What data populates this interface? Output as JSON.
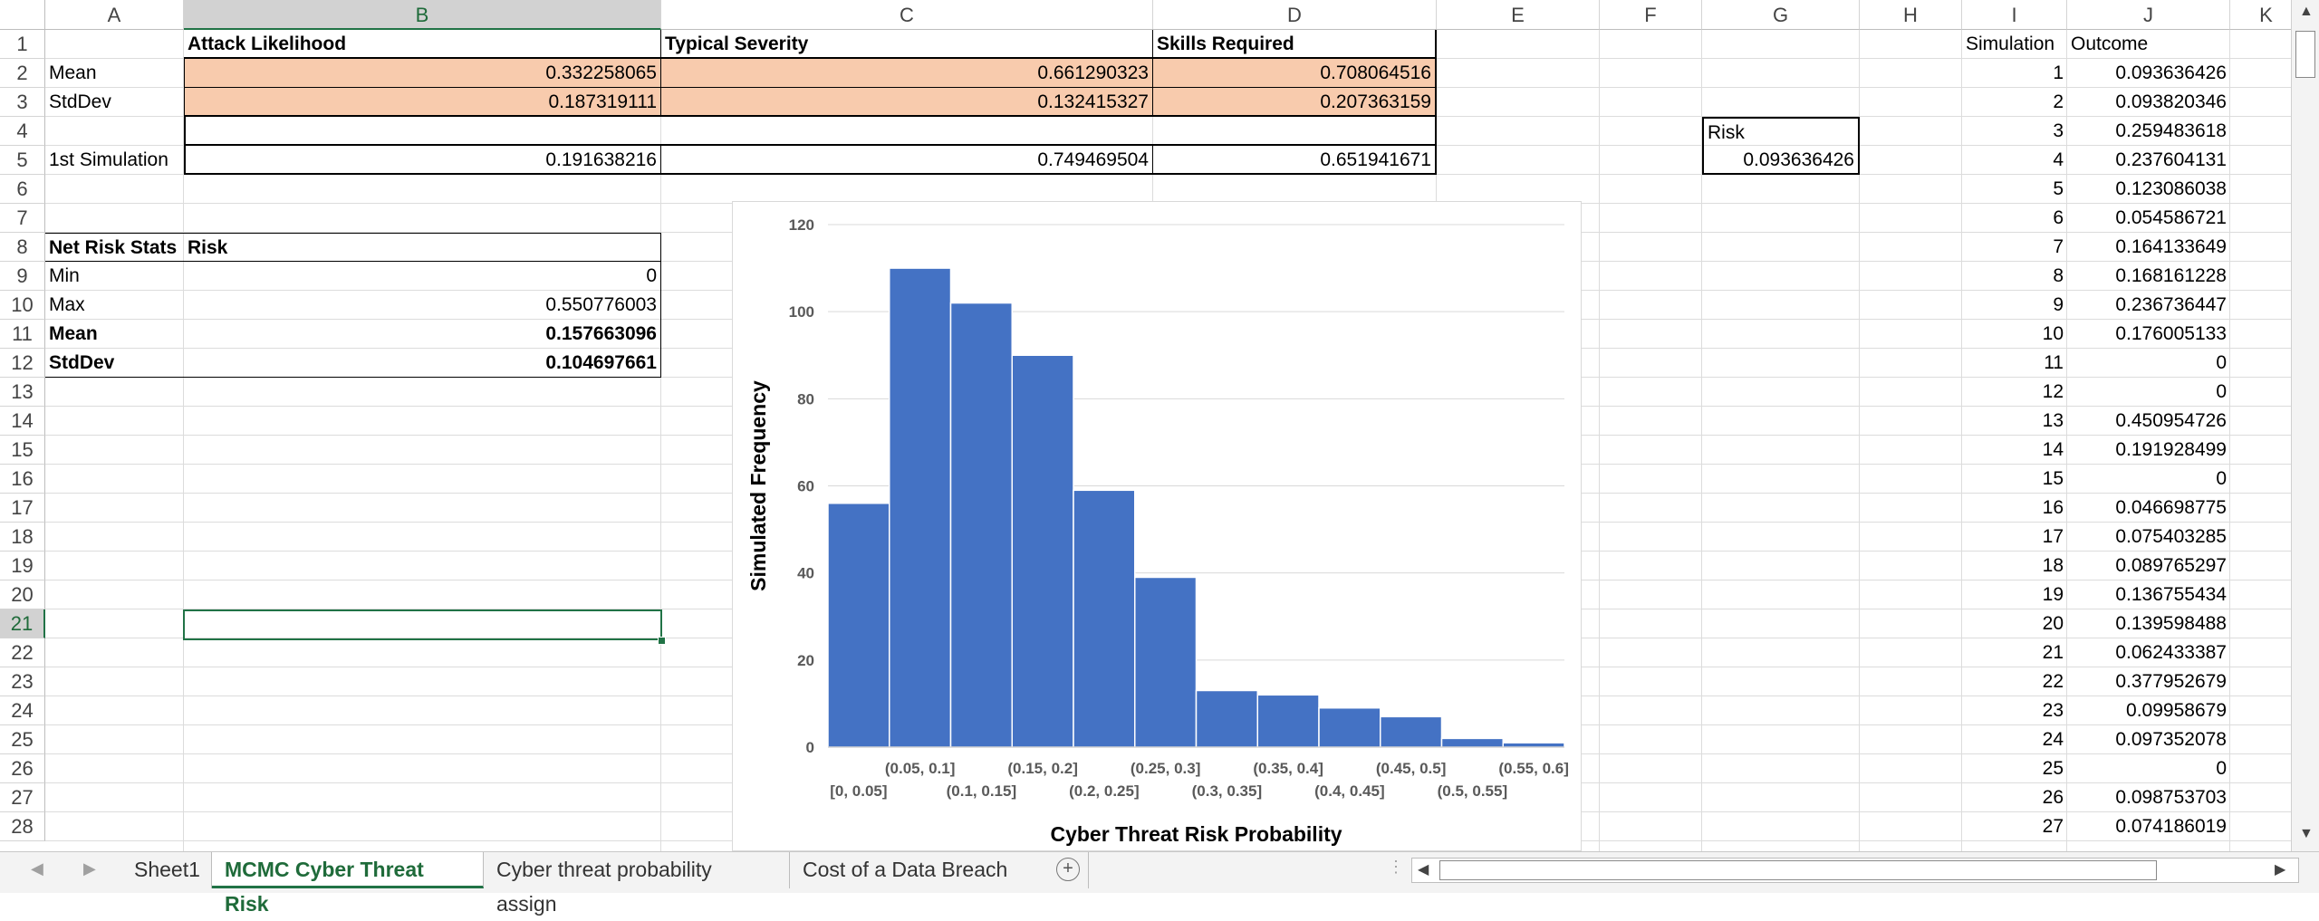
{
  "columns": [
    {
      "label": "A",
      "w": 153
    },
    {
      "label": "B",
      "w": 527
    },
    {
      "label": "C",
      "w": 543
    },
    {
      "label": "D",
      "w": 313
    },
    {
      "label": "E",
      "w": 180
    },
    {
      "label": "F",
      "w": 113
    },
    {
      "label": "G",
      "w": 174
    },
    {
      "label": "H",
      "w": 113
    },
    {
      "label": "I",
      "w": 116
    },
    {
      "label": "J",
      "w": 180
    },
    {
      "label": "K",
      "w": 80
    }
  ],
  "selected_column": "B",
  "rows": [
    "1",
    "2",
    "3",
    "4",
    "5",
    "6",
    "7",
    "8",
    "9",
    "10",
    "11",
    "12",
    "13",
    "14",
    "15",
    "16",
    "17",
    "18",
    "19",
    "20",
    "21",
    "22",
    "23",
    "24",
    "25",
    "26",
    "27",
    "28"
  ],
  "selected_row": "21",
  "inputs": {
    "headers": {
      "b": "Attack Likelihood",
      "c": "Typical Severity",
      "d": "Skills Required"
    },
    "mean": {
      "label": "Mean",
      "b": "0.332258065",
      "c": "0.661290323",
      "d": "0.708064516"
    },
    "stddev": {
      "label": "StdDev",
      "b": "0.187319111",
      "c": "0.132415327",
      "d": "0.207363159"
    },
    "first_sim": {
      "label": "1st Simulation",
      "b": "0.191638216",
      "c": "0.749469504",
      "d": "0.651941671"
    }
  },
  "risk_box": {
    "label": "Risk",
    "value": "0.093636426"
  },
  "net_risk": {
    "title": "Net Risk Stats",
    "col": "Risk",
    "min": {
      "label": "Min",
      "value": "0"
    },
    "max": {
      "label": "Max",
      "value": "0.550776003"
    },
    "mean": {
      "label": "Mean",
      "value": "0.157663096"
    },
    "stddev": {
      "label": "StdDev",
      "value": "0.104697661"
    }
  },
  "sim_table": {
    "header_i": "Simulation",
    "header_j": "Outcome",
    "rows": [
      {
        "n": "1",
        "v": "0.093636426"
      },
      {
        "n": "2",
        "v": "0.093820346"
      },
      {
        "n": "3",
        "v": "0.259483618"
      },
      {
        "n": "4",
        "v": "0.237604131"
      },
      {
        "n": "5",
        "v": "0.123086038"
      },
      {
        "n": "6",
        "v": "0.054586721"
      },
      {
        "n": "7",
        "v": "0.164133649"
      },
      {
        "n": "8",
        "v": "0.168161228"
      },
      {
        "n": "9",
        "v": "0.236736447"
      },
      {
        "n": "10",
        "v": "0.176005133"
      },
      {
        "n": "11",
        "v": "0"
      },
      {
        "n": "12",
        "v": "0"
      },
      {
        "n": "13",
        "v": "0.450954726"
      },
      {
        "n": "14",
        "v": "0.191928499"
      },
      {
        "n": "15",
        "v": "0"
      },
      {
        "n": "16",
        "v": "0.046698775"
      },
      {
        "n": "17",
        "v": "0.075403285"
      },
      {
        "n": "18",
        "v": "0.089765297"
      },
      {
        "n": "19",
        "v": "0.136755434"
      },
      {
        "n": "20",
        "v": "0.139598488"
      },
      {
        "n": "21",
        "v": "0.062433387"
      },
      {
        "n": "22",
        "v": "0.377952679"
      },
      {
        "n": "23",
        "v": "0.09958679"
      },
      {
        "n": "24",
        "v": "0.097352078"
      },
      {
        "n": "25",
        "v": "0"
      },
      {
        "n": "26",
        "v": "0.098753703"
      },
      {
        "n": "27",
        "v": "0.074186019"
      }
    ]
  },
  "chart_data": {
    "type": "bar",
    "categories": [
      "[0, 0.05]",
      "(0.05, 0.1]",
      "(0.1, 0.15]",
      "(0.15, 0.2]",
      "(0.2, 0.25]",
      "(0.25, 0.3]",
      "(0.3, 0.35]",
      "(0.35, 0.4]",
      "(0.4, 0.45]",
      "(0.45, 0.5]",
      "(0.5, 0.55]",
      "(0.55, 0.6]"
    ],
    "values": [
      56,
      110,
      102,
      90,
      59,
      39,
      13,
      12,
      9,
      7,
      2,
      1
    ],
    "title": "",
    "xlabel": "Cyber Threat Risk Probability",
    "ylabel": "Simulated Frequency",
    "ylim": [
      0,
      120
    ],
    "yticks": [
      0,
      20,
      40,
      60,
      80,
      100,
      120
    ],
    "grid": true,
    "color": "#4472c4"
  },
  "tabs": [
    {
      "label": "Sheet1",
      "active": false
    },
    {
      "label": "MCMC Cyber Threat Risk",
      "active": true
    },
    {
      "label": "Cyber threat probability assign",
      "active": false
    },
    {
      "label": "Cost of a Data Breach",
      "active": false
    }
  ],
  "add_sheet_symbol": "+",
  "icons": {
    "tab_prev": "triangle-left",
    "tab_next": "triangle-right",
    "add": "plus-circle"
  }
}
